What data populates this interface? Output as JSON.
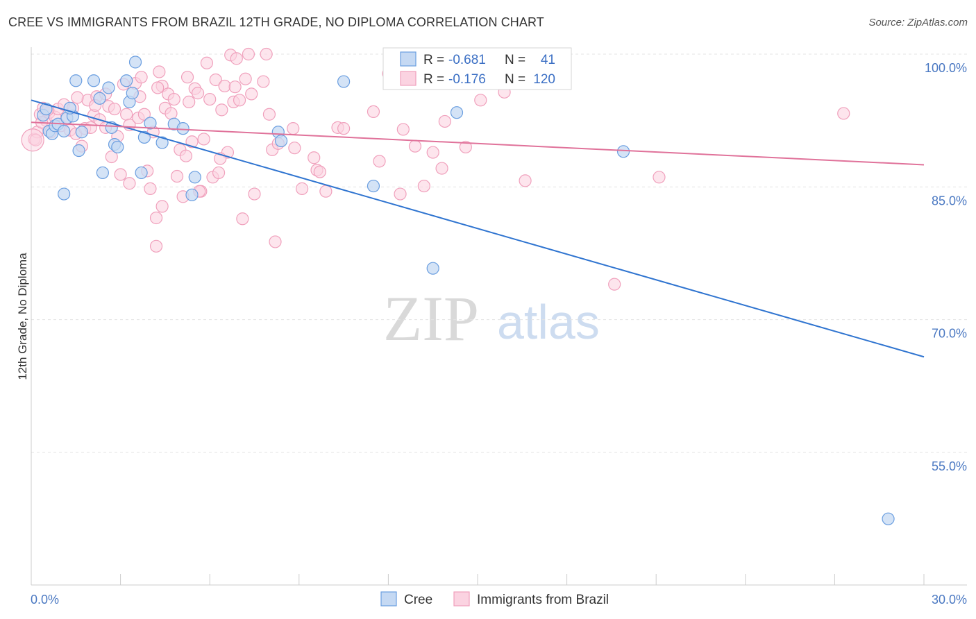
{
  "header": {
    "title": "CREE VS IMMIGRANTS FROM BRAZIL 12TH GRADE, NO DIPLOMA CORRELATION CHART",
    "source": "Source: ZipAtlas.com"
  },
  "watermark": {
    "zip": "ZIP",
    "atlas": "atlas"
  },
  "legend_box": {
    "rows": [
      {
        "r_label": "R =",
        "r_value": "-0.681",
        "n_label": "N =",
        "n_value": "41",
        "color": "#6a9ee0"
      },
      {
        "r_label": "R =",
        "r_value": "-0.176",
        "n_label": "N =",
        "n_value": "120",
        "color": "#f0a0bc"
      }
    ]
  },
  "bottom_legend": [
    {
      "label": "Cree",
      "color": "#6a9ee0"
    },
    {
      "label": "Immigrants from Brazil",
      "color": "#f0a0bc"
    }
  ],
  "chart_data": {
    "type": "scatter",
    "title": "CREE VS IMMIGRANTS FROM BRAZIL 12TH GRADE, NO DIPLOMA CORRELATION CHART",
    "xlabel": "",
    "ylabel": "12th Grade, No Diploma",
    "xlim": [
      0,
      30
    ],
    "ylim": [
      40,
      100
    ],
    "x_tick_labels": [
      "0.0%",
      "30.0%"
    ],
    "y_ticks": [
      100,
      85,
      70,
      55
    ],
    "y_tick_labels": [
      "100.0%",
      "85.0%",
      "70.0%",
      "55.0%"
    ],
    "grid": true,
    "legend_position": "top-center",
    "series": [
      {
        "name": "Cree",
        "color": "#6a9ee0",
        "trend": {
          "x": [
            0,
            30
          ],
          "y": [
            94.8,
            65.8
          ]
        },
        "points": [
          [
            0.4,
            93.1
          ],
          [
            0.5,
            93.8
          ],
          [
            0.6,
            91.3
          ],
          [
            0.7,
            91.0
          ],
          [
            0.8,
            91.9
          ],
          [
            0.9,
            92.1
          ],
          [
            1.1,
            91.3
          ],
          [
            1.2,
            92.8
          ],
          [
            1.4,
            93.0
          ],
          [
            1.5,
            97.0
          ],
          [
            1.6,
            89.1
          ],
          [
            1.7,
            91.2
          ],
          [
            2.1,
            97.0
          ],
          [
            2.3,
            95.0
          ],
          [
            2.4,
            86.6
          ],
          [
            2.6,
            96.2
          ],
          [
            2.7,
            91.7
          ],
          [
            2.8,
            89.8
          ],
          [
            2.9,
            89.5
          ],
          [
            3.2,
            97.0
          ],
          [
            3.3,
            94.6
          ],
          [
            3.4,
            95.6
          ],
          [
            3.5,
            99.1
          ],
          [
            3.7,
            86.6
          ],
          [
            3.8,
            90.6
          ],
          [
            4.0,
            92.2
          ],
          [
            4.4,
            90.0
          ],
          [
            4.8,
            92.1
          ],
          [
            5.1,
            91.6
          ],
          [
            5.4,
            84.1
          ],
          [
            5.5,
            86.1
          ],
          [
            8.3,
            91.2
          ],
          [
            8.4,
            90.2
          ],
          [
            10.5,
            96.9
          ],
          [
            11.5,
            85.1
          ],
          [
            13.5,
            75.8
          ],
          [
            14.3,
            93.4
          ],
          [
            19.9,
            89.0
          ],
          [
            28.8,
            47.5
          ],
          [
            1.1,
            84.2
          ],
          [
            1.3,
            93.9
          ]
        ]
      },
      {
        "name": "Immigrants from Brazil",
        "color": "#f0a0bc",
        "trend": {
          "x": [
            0,
            30
          ],
          "y": [
            92.3,
            87.5
          ]
        },
        "points": [
          [
            0.1,
            90.4
          ],
          [
            0.2,
            91.2
          ],
          [
            0.3,
            93.2
          ],
          [
            0.4,
            93.9
          ],
          [
            0.5,
            92.5
          ],
          [
            0.6,
            93.4
          ],
          [
            0.8,
            92.9
          ],
          [
            0.9,
            93.8
          ],
          [
            1.0,
            91.9
          ],
          [
            1.1,
            94.3
          ],
          [
            1.2,
            92.7
          ],
          [
            1.3,
            91.4
          ],
          [
            1.4,
            93.9
          ],
          [
            1.5,
            91.0
          ],
          [
            1.7,
            89.6
          ],
          [
            1.8,
            91.6
          ],
          [
            1.9,
            94.8
          ],
          [
            2.0,
            91.7
          ],
          [
            2.1,
            93.1
          ],
          [
            2.2,
            95.2
          ],
          [
            2.3,
            92.6
          ],
          [
            2.5,
            95.5
          ],
          [
            2.5,
            91.7
          ],
          [
            2.6,
            94.1
          ],
          [
            2.7,
            88.4
          ],
          [
            2.8,
            93.8
          ],
          [
            2.9,
            90.7
          ],
          [
            3.0,
            86.4
          ],
          [
            3.1,
            96.6
          ],
          [
            3.2,
            93.2
          ],
          [
            3.3,
            92.0
          ],
          [
            3.3,
            85.4
          ],
          [
            3.5,
            96.7
          ],
          [
            3.6,
            92.8
          ],
          [
            3.7,
            97.4
          ],
          [
            3.8,
            93.2
          ],
          [
            3.9,
            86.8
          ],
          [
            4.0,
            84.8
          ],
          [
            4.1,
            91.2
          ],
          [
            4.2,
            81.5
          ],
          [
            4.2,
            78.3
          ],
          [
            4.3,
            98.0
          ],
          [
            4.4,
            82.8
          ],
          [
            4.4,
            96.4
          ],
          [
            4.5,
            93.9
          ],
          [
            4.6,
            95.5
          ],
          [
            4.7,
            93.3
          ],
          [
            4.8,
            94.9
          ],
          [
            4.9,
            86.2
          ],
          [
            5.0,
            89.2
          ],
          [
            5.1,
            83.9
          ],
          [
            5.2,
            88.5
          ],
          [
            5.3,
            94.6
          ],
          [
            5.4,
            90.1
          ],
          [
            5.5,
            96.1
          ],
          [
            5.6,
            95.6
          ],
          [
            5.7,
            84.5
          ],
          [
            5.8,
            90.4
          ],
          [
            5.9,
            99.0
          ],
          [
            6.0,
            94.9
          ],
          [
            6.1,
            86.1
          ],
          [
            6.2,
            97.1
          ],
          [
            6.3,
            86.6
          ],
          [
            6.4,
            93.7
          ],
          [
            6.5,
            96.4
          ],
          [
            6.6,
            88.9
          ],
          [
            6.7,
            99.9
          ],
          [
            6.8,
            94.6
          ],
          [
            6.9,
            99.5
          ],
          [
            7.0,
            94.8
          ],
          [
            7.1,
            81.4
          ],
          [
            7.2,
            97.2
          ],
          [
            7.3,
            100.0
          ],
          [
            7.4,
            95.5
          ],
          [
            7.5,
            84.2
          ],
          [
            7.8,
            96.9
          ],
          [
            7.9,
            100.0
          ],
          [
            8.0,
            93.2
          ],
          [
            8.1,
            89.2
          ],
          [
            8.2,
            78.8
          ],
          [
            8.3,
            89.9
          ],
          [
            8.8,
            91.6
          ],
          [
            9.5,
            88.3
          ],
          [
            9.6,
            86.9
          ],
          [
            9.7,
            86.7
          ],
          [
            9.9,
            84.5
          ],
          [
            10.3,
            91.7
          ],
          [
            10.5,
            91.6
          ],
          [
            11.5,
            93.5
          ],
          [
            11.7,
            87.9
          ],
          [
            12.1,
            98.2
          ],
          [
            12.4,
            84.2
          ],
          [
            12.5,
            91.5
          ],
          [
            13.2,
            85.1
          ],
          [
            13.5,
            88.9
          ],
          [
            13.8,
            87.1
          ],
          [
            13.9,
            92.4
          ],
          [
            15.1,
            94.8
          ],
          [
            15.9,
            95.7
          ],
          [
            16.6,
            85.7
          ],
          [
            19.6,
            74.0
          ],
          [
            21.1,
            86.1
          ],
          [
            27.3,
            93.3
          ],
          [
            0.15,
            90.3
          ],
          [
            0.35,
            92.3
          ],
          [
            0.55,
            93.7
          ],
          [
            1.55,
            95.1
          ],
          [
            2.15,
            94.2
          ],
          [
            3.65,
            95.2
          ],
          [
            4.25,
            96.2
          ],
          [
            5.25,
            97.4
          ],
          [
            5.65,
            84.5
          ],
          [
            6.35,
            88.2
          ],
          [
            6.85,
            96.3
          ],
          [
            8.85,
            89.4
          ],
          [
            9.1,
            84.8
          ],
          [
            12.0,
            97.8
          ],
          [
            12.9,
            89.6
          ],
          [
            14.6,
            89.5
          ],
          [
            0.65,
            91.2
          ]
        ]
      }
    ]
  }
}
